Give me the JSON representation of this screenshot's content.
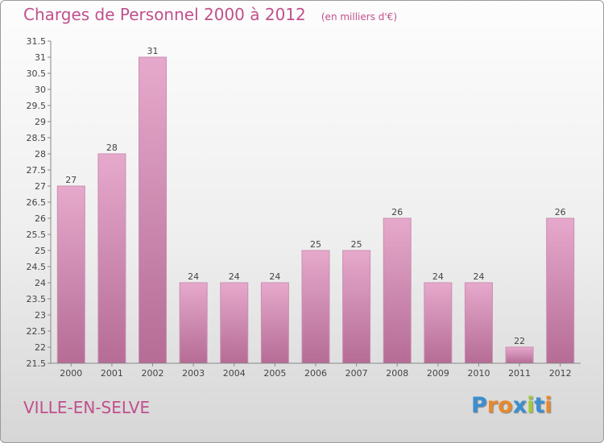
{
  "header": {
    "title": "Charges de Personnel 2000 à 2012",
    "subtitle": "(en milliers d'€)"
  },
  "footer": {
    "place": "VILLE-EN-SELVE",
    "logo": "Proxiti"
  },
  "colors": {
    "accent": "#c0508c",
    "bar_top": "#e6a9cc",
    "bar_bottom": "#b56c95",
    "logo_letters": [
      "#3a8fd0",
      "#e8892b",
      "#e8892b",
      "#3a8fd0",
      "#9fc93c",
      "#3a8fd0",
      "#e8892b"
    ]
  },
  "chart_data": {
    "type": "bar",
    "title": "Charges de Personnel 2000 à 2012",
    "subtitle": "(en milliers d'€)",
    "categories": [
      "2000",
      "2001",
      "2002",
      "2003",
      "2004",
      "2005",
      "2006",
      "2007",
      "2008",
      "2009",
      "2010",
      "2011",
      "2012"
    ],
    "values": [
      27,
      28,
      31,
      24,
      24,
      24,
      25,
      25,
      26,
      24,
      24,
      22,
      26
    ],
    "value_labels": [
      "27",
      "28",
      "31",
      "24",
      "24",
      "24",
      "25",
      "25",
      "26",
      "24",
      "24",
      "22",
      "26"
    ],
    "ylim": [
      21.5,
      31.5
    ],
    "yticks": [
      "21.5",
      "22",
      "22.5",
      "23",
      "23.5",
      "24",
      "24.5",
      "25",
      "25.5",
      "26",
      "26.5",
      "27",
      "27.5",
      "28",
      "28.5",
      "29",
      "29.5",
      "30",
      "30.5",
      "31",
      "31.5"
    ],
    "grid": false,
    "legend": "none"
  }
}
